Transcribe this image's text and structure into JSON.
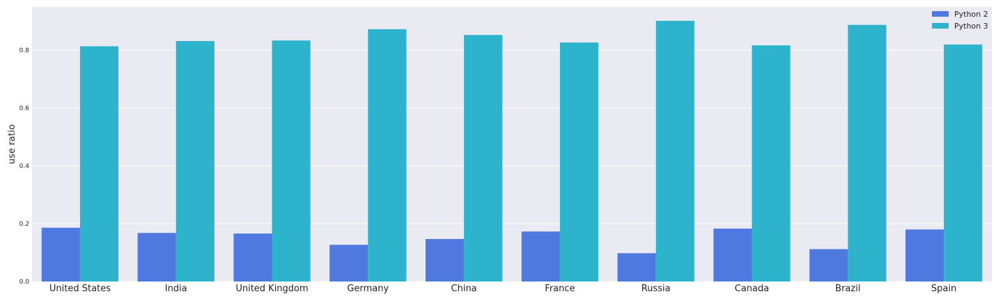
{
  "chart_data": {
    "type": "bar",
    "title": "",
    "xlabel": "",
    "ylabel": "use ratio",
    "categories": [
      "United States",
      "India",
      "United Kingdom",
      "Germany",
      "China",
      "France",
      "Russia",
      "Canada",
      "Brazil",
      "Spain"
    ],
    "series": [
      {
        "name": "Python 2",
        "color": "#5079e0",
        "values": [
          0.186,
          0.168,
          0.166,
          0.127,
          0.147,
          0.173,
          0.098,
          0.183,
          0.112,
          0.18
        ]
      },
      {
        "name": "Python 3",
        "color": "#2db4cc",
        "values": [
          0.814,
          0.832,
          0.834,
          0.873,
          0.853,
          0.827,
          0.902,
          0.817,
          0.888,
          0.82
        ]
      }
    ],
    "ylim": [
      0,
      0.95
    ],
    "yticks": [
      "0.0",
      "0.2",
      "0.4",
      "0.6",
      "0.8"
    ],
    "grid": true,
    "legend_position": "top-right",
    "background_color": "#eaeaf2",
    "grid_color": "#ffffff"
  }
}
